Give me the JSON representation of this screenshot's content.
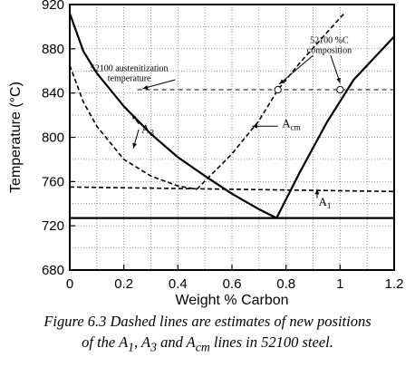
{
  "chart_data": {
    "type": "line",
    "xlabel": "Weight % Carbon",
    "ylabel": "Temperature (°C)",
    "xlim": [
      0,
      1.2
    ],
    "ylim": [
      680,
      920
    ],
    "xticks": [
      0,
      0.2,
      0.4,
      0.6,
      0.8,
      1,
      1.2
    ],
    "xtick_labels": [
      "0",
      "0.2",
      "0.4",
      "0.6",
      "0.8",
      "1",
      "1.2"
    ],
    "yticks": [
      680,
      720,
      760,
      800,
      840,
      880,
      920
    ],
    "ytick_labels": [
      "680",
      "720",
      "760",
      "800",
      "840",
      "880",
      "920"
    ],
    "grid": true,
    "series": [
      {
        "name": "A3",
        "style": "solid",
        "color": "#000000",
        "x": [
          0,
          0.05,
          0.1,
          0.2,
          0.3,
          0.4,
          0.5,
          0.6,
          0.7,
          0.765
        ],
        "y": [
          912,
          878,
          858,
          828,
          803,
          782,
          765,
          749,
          735,
          727
        ]
      },
      {
        "name": "Acm",
        "style": "solid",
        "color": "#000000",
        "x": [
          0.765,
          0.85,
          0.95,
          1.05,
          1.15,
          1.2
        ],
        "y": [
          727,
          768,
          813,
          852,
          878,
          891
        ]
      },
      {
        "name": "A1",
        "style": "solid",
        "color": "#000000",
        "x": [
          0,
          1.2
        ],
        "y": [
          727,
          727
        ]
      },
      {
        "name": "A3 (new estimate)",
        "style": "dashed",
        "color": "#000000",
        "x": [
          0,
          0.05,
          0.1,
          0.2,
          0.3,
          0.4,
          0.47
        ],
        "y": [
          865,
          832,
          810,
          780,
          765,
          756,
          753
        ]
      },
      {
        "name": "Acm (new estimate)",
        "style": "dashed",
        "color": "#000000",
        "x": [
          0.47,
          0.6,
          0.7,
          0.77,
          0.85,
          1,
          1.02
        ],
        "y": [
          753,
          785,
          815,
          843,
          867,
          908,
          913
        ]
      },
      {
        "name": "A1 (new estimate)",
        "style": "dashed",
        "color": "#000000",
        "x": [
          0,
          1.2
        ],
        "y": [
          755,
          751
        ]
      },
      {
        "name": "52100 austenitization temperature",
        "style": "dashed",
        "color": "#000000",
        "x": [
          0.25,
          1.2
        ],
        "y": [
          843,
          843
        ]
      }
    ],
    "markers": [
      {
        "x": 0.77,
        "y": 843,
        "shape": "open-circle"
      },
      {
        "x": 1.0,
        "y": 843,
        "shape": "open-circle"
      }
    ],
    "annotations": [
      {
        "text_lines": [
          "52100 austenitization",
          "temperature"
        ],
        "x": 0.22,
        "y": 860
      },
      {
        "text_lines": [
          "52100 %C",
          "composition"
        ],
        "x": 0.96,
        "y": 885
      },
      {
        "label": "A",
        "sub": "3",
        "x": 0.265,
        "y": 804
      },
      {
        "label": "A",
        "sub": "cm",
        "x": 0.785,
        "y": 809
      },
      {
        "label": "A",
        "sub": "1",
        "x": 0.92,
        "y": 738
      }
    ]
  },
  "caption": {
    "line1": "Figure 6.3  Dashed lines are estimates of new positions",
    "line2_pre": "of the A",
    "line2_s1": "1",
    "line2_mid1": ", A",
    "line2_s3": "3",
    "line2_mid2": " and A",
    "line2_scm": "cm",
    "line2_post": " lines in 52100 steel."
  }
}
